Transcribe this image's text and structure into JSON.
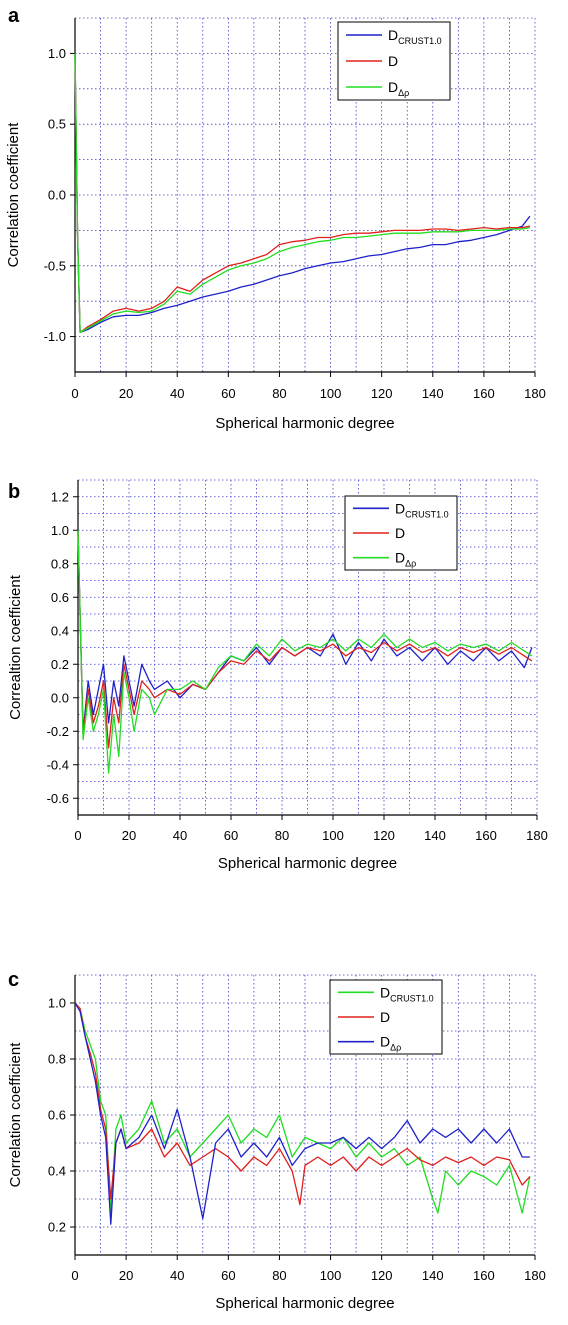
{
  "figure": {
    "panels": [
      "a",
      "b",
      "c"
    ]
  },
  "chart_data": [
    {
      "panel": "a",
      "type": "line",
      "title": "",
      "xlabel": "Spherical harmonic degree",
      "ylabel": "Correlation coefficient",
      "xlim": [
        0,
        180
      ],
      "ylim": [
        -1.25,
        1.25
      ],
      "xticks": [
        0,
        20,
        40,
        60,
        80,
        100,
        120,
        140,
        160,
        180
      ],
      "yticks": [
        -1.0,
        -0.5,
        0.0,
        0.5,
        1.0
      ],
      "ytick_labels": [
        "-1.0",
        "-0.5",
        "0.0",
        "0.5",
        "1.0"
      ],
      "grid": true,
      "legend_position": "top-right",
      "legend": [
        {
          "main": "D",
          "sub": "CRUST1.0",
          "color": "#1f22c9"
        },
        {
          "main": "D",
          "sub": "",
          "color": "#e0201c"
        },
        {
          "main": "D",
          "sub": "Δρ",
          "color": "#22dd22"
        }
      ],
      "series": [
        {
          "name": "D CRUST1.0",
          "color": "#1f22c9",
          "x": [
            0,
            1,
            2,
            5,
            10,
            15,
            20,
            25,
            30,
            35,
            40,
            45,
            50,
            55,
            60,
            65,
            70,
            75,
            80,
            85,
            90,
            95,
            100,
            105,
            110,
            115,
            120,
            125,
            130,
            135,
            140,
            145,
            150,
            155,
            160,
            165,
            170,
            175,
            178
          ],
          "y": [
            1.0,
            -0.3,
            -0.97,
            -0.95,
            -0.9,
            -0.86,
            -0.85,
            -0.85,
            -0.83,
            -0.8,
            -0.78,
            -0.75,
            -0.72,
            -0.7,
            -0.68,
            -0.65,
            -0.63,
            -0.6,
            -0.57,
            -0.55,
            -0.52,
            -0.5,
            -0.48,
            -0.47,
            -0.45,
            -0.43,
            -0.42,
            -0.4,
            -0.38,
            -0.37,
            -0.35,
            -0.35,
            -0.33,
            -0.32,
            -0.3,
            -0.28,
            -0.25,
            -0.22,
            -0.15
          ]
        },
        {
          "name": "D",
          "color": "#e0201c",
          "x": [
            0,
            1,
            2,
            5,
            10,
            15,
            20,
            25,
            30,
            35,
            40,
            45,
            50,
            55,
            60,
            65,
            70,
            75,
            80,
            85,
            90,
            95,
            100,
            105,
            110,
            115,
            120,
            125,
            130,
            135,
            140,
            145,
            150,
            155,
            160,
            165,
            170,
            175,
            178
          ],
          "y": [
            1.0,
            -0.3,
            -0.97,
            -0.93,
            -0.88,
            -0.82,
            -0.8,
            -0.82,
            -0.8,
            -0.75,
            -0.65,
            -0.68,
            -0.6,
            -0.55,
            -0.5,
            -0.48,
            -0.45,
            -0.42,
            -0.35,
            -0.33,
            -0.32,
            -0.3,
            -0.3,
            -0.28,
            -0.27,
            -0.27,
            -0.26,
            -0.25,
            -0.25,
            -0.25,
            -0.24,
            -0.24,
            -0.25,
            -0.24,
            -0.23,
            -0.24,
            -0.23,
            -0.23,
            -0.22
          ]
        },
        {
          "name": "D Δρ",
          "color": "#22dd22",
          "x": [
            0,
            1,
            2,
            5,
            10,
            15,
            20,
            25,
            30,
            35,
            40,
            45,
            50,
            55,
            60,
            65,
            70,
            75,
            80,
            85,
            90,
            95,
            100,
            105,
            110,
            115,
            120,
            125,
            130,
            135,
            140,
            145,
            150,
            155,
            160,
            165,
            170,
            175,
            178
          ],
          "y": [
            1.0,
            -0.3,
            -0.97,
            -0.94,
            -0.89,
            -0.84,
            -0.82,
            -0.83,
            -0.82,
            -0.77,
            -0.68,
            -0.7,
            -0.63,
            -0.58,
            -0.53,
            -0.5,
            -0.48,
            -0.45,
            -0.4,
            -0.37,
            -0.35,
            -0.33,
            -0.32,
            -0.3,
            -0.3,
            -0.29,
            -0.28,
            -0.27,
            -0.27,
            -0.27,
            -0.26,
            -0.26,
            -0.26,
            -0.25,
            -0.25,
            -0.25,
            -0.24,
            -0.24,
            -0.23
          ]
        }
      ]
    },
    {
      "panel": "b",
      "type": "line",
      "title": "",
      "xlabel": "Spherical harmonic degree",
      "ylabel": "Correaltion coefficient",
      "xlim": [
        0,
        180
      ],
      "ylim": [
        -0.7,
        1.3
      ],
      "xticks": [
        0,
        20,
        40,
        60,
        80,
        100,
        120,
        140,
        160,
        180
      ],
      "yticks": [
        -0.6,
        -0.4,
        -0.2,
        0.0,
        0.2,
        0.4,
        0.6,
        0.8,
        1.0,
        1.2
      ],
      "ytick_labels": [
        "-0.6",
        "-0.4",
        "-0.2",
        "0.0",
        "0.2",
        "0.4",
        "0.6",
        "0.8",
        "1.0",
        "1.2"
      ],
      "grid": true,
      "legend_position": "top-right",
      "legend": [
        {
          "main": "D",
          "sub": "CRUST1.0",
          "color": "#1f22c9"
        },
        {
          "main": "D",
          "sub": "",
          "color": "#e0201c"
        },
        {
          "main": "D",
          "sub": "Δρ",
          "color": "#22dd22"
        }
      ],
      "series": [
        {
          "name": "D CRUST1.0",
          "color": "#1f22c9",
          "x": [
            0,
            1,
            2,
            4,
            6,
            8,
            10,
            12,
            14,
            16,
            18,
            20,
            22,
            25,
            28,
            30,
            35,
            40,
            45,
            50,
            55,
            60,
            65,
            70,
            75,
            80,
            85,
            90,
            95,
            100,
            105,
            110,
            115,
            120,
            125,
            130,
            135,
            140,
            145,
            150,
            155,
            160,
            165,
            170,
            175,
            178
          ],
          "y": [
            1.0,
            0.4,
            -0.2,
            0.1,
            -0.1,
            0.05,
            0.2,
            -0.15,
            0.1,
            -0.05,
            0.25,
            0.1,
            -0.05,
            0.2,
            0.1,
            0.05,
            0.1,
            0.0,
            0.08,
            0.05,
            0.15,
            0.25,
            0.22,
            0.3,
            0.2,
            0.3,
            0.25,
            0.3,
            0.25,
            0.38,
            0.2,
            0.33,
            0.22,
            0.35,
            0.25,
            0.3,
            0.22,
            0.3,
            0.2,
            0.28,
            0.22,
            0.3,
            0.22,
            0.28,
            0.18,
            0.3
          ]
        },
        {
          "name": "D",
          "color": "#e0201c",
          "x": [
            0,
            1,
            2,
            4,
            6,
            8,
            10,
            12,
            14,
            16,
            18,
            20,
            22,
            25,
            28,
            30,
            35,
            40,
            45,
            50,
            55,
            60,
            65,
            70,
            75,
            80,
            85,
            90,
            95,
            100,
            105,
            110,
            115,
            120,
            125,
            130,
            135,
            140,
            145,
            150,
            155,
            160,
            165,
            170,
            175,
            178
          ],
          "y": [
            1.0,
            0.4,
            -0.22,
            0.05,
            -0.15,
            -0.05,
            0.1,
            -0.3,
            0.0,
            -0.15,
            0.2,
            0.05,
            -0.1,
            0.1,
            0.05,
            0.0,
            0.05,
            0.02,
            0.08,
            0.05,
            0.15,
            0.22,
            0.2,
            0.28,
            0.22,
            0.3,
            0.25,
            0.3,
            0.28,
            0.32,
            0.25,
            0.3,
            0.27,
            0.33,
            0.28,
            0.32,
            0.27,
            0.3,
            0.25,
            0.3,
            0.27,
            0.3,
            0.26,
            0.3,
            0.25,
            0.22
          ]
        },
        {
          "name": "D Δρ",
          "color": "#22dd22",
          "x": [
            0,
            1,
            2,
            4,
            6,
            8,
            10,
            12,
            14,
            16,
            18,
            20,
            22,
            25,
            28,
            30,
            35,
            40,
            45,
            50,
            55,
            60,
            65,
            70,
            75,
            80,
            85,
            90,
            95,
            100,
            105,
            110,
            115,
            120,
            125,
            130,
            135,
            140,
            145,
            150,
            155,
            160,
            165,
            170,
            175,
            178
          ],
          "y": [
            1.0,
            0.4,
            -0.25,
            0.0,
            -0.2,
            -0.1,
            0.05,
            -0.45,
            -0.1,
            -0.35,
            0.15,
            0.0,
            -0.2,
            0.05,
            0.0,
            -0.1,
            0.05,
            0.05,
            0.1,
            0.05,
            0.18,
            0.25,
            0.22,
            0.32,
            0.25,
            0.35,
            0.28,
            0.32,
            0.3,
            0.35,
            0.28,
            0.35,
            0.3,
            0.38,
            0.3,
            0.35,
            0.3,
            0.33,
            0.28,
            0.32,
            0.3,
            0.32,
            0.28,
            0.33,
            0.28,
            0.25
          ]
        }
      ]
    },
    {
      "panel": "c",
      "type": "line",
      "title": "",
      "xlabel": "Spherical harmonic degree",
      "ylabel": "Correlation coefficient",
      "xlim": [
        0,
        180
      ],
      "ylim": [
        0.1,
        1.1
      ],
      "xticks": [
        0,
        20,
        40,
        60,
        80,
        100,
        120,
        140,
        160,
        180
      ],
      "yticks": [
        0.2,
        0.4,
        0.6,
        0.8,
        1.0
      ],
      "ytick_labels": [
        "0.2",
        "0.4",
        "0.6",
        "0.8",
        "1.0"
      ],
      "grid": true,
      "legend_position": "top-right",
      "legend": [
        {
          "main": "D",
          "sub": "CRUST1.0",
          "color": "#22dd22"
        },
        {
          "main": "D",
          "sub": "",
          "color": "#e0201c"
        },
        {
          "main": "D",
          "sub": "Δρ",
          "color": "#1f22c9"
        }
      ],
      "series": [
        {
          "name": "D CRUST1.0",
          "color": "#22dd22",
          "x": [
            0,
            2,
            4,
            6,
            8,
            10,
            12,
            14,
            16,
            18,
            20,
            25,
            30,
            35,
            40,
            45,
            50,
            55,
            60,
            65,
            70,
            75,
            80,
            85,
            90,
            95,
            100,
            105,
            110,
            115,
            120,
            125,
            130,
            135,
            140,
            142,
            145,
            150,
            155,
            160,
            165,
            170,
            175,
            178
          ],
          "y": [
            1.0,
            0.98,
            0.9,
            0.85,
            0.8,
            0.65,
            0.6,
            0.25,
            0.55,
            0.6,
            0.5,
            0.55,
            0.65,
            0.5,
            0.55,
            0.45,
            0.5,
            0.55,
            0.6,
            0.5,
            0.55,
            0.52,
            0.6,
            0.45,
            0.52,
            0.5,
            0.48,
            0.52,
            0.45,
            0.5,
            0.45,
            0.48,
            0.42,
            0.45,
            0.3,
            0.25,
            0.4,
            0.35,
            0.4,
            0.38,
            0.35,
            0.42,
            0.25,
            0.38
          ]
        },
        {
          "name": "D",
          "color": "#e0201c",
          "x": [
            0,
            2,
            4,
            6,
            8,
            10,
            12,
            14,
            16,
            18,
            20,
            25,
            30,
            35,
            40,
            45,
            50,
            55,
            60,
            65,
            70,
            75,
            80,
            85,
            88,
            90,
            95,
            100,
            105,
            110,
            115,
            120,
            125,
            130,
            135,
            140,
            145,
            150,
            155,
            160,
            165,
            170,
            175,
            178
          ],
          "y": [
            1.0,
            0.98,
            0.88,
            0.82,
            0.75,
            0.62,
            0.55,
            0.3,
            0.5,
            0.55,
            0.48,
            0.5,
            0.55,
            0.45,
            0.5,
            0.42,
            0.45,
            0.48,
            0.45,
            0.4,
            0.45,
            0.42,
            0.48,
            0.4,
            0.28,
            0.42,
            0.45,
            0.42,
            0.45,
            0.4,
            0.45,
            0.42,
            0.45,
            0.48,
            0.44,
            0.42,
            0.45,
            0.43,
            0.45,
            0.42,
            0.45,
            0.44,
            0.35,
            0.38
          ]
        },
        {
          "name": "D Δρ",
          "color": "#1f22c9",
          "x": [
            0,
            2,
            4,
            6,
            8,
            10,
            12,
            14,
            16,
            18,
            20,
            25,
            30,
            35,
            40,
            45,
            50,
            55,
            60,
            65,
            70,
            75,
            80,
            85,
            90,
            95,
            100,
            105,
            110,
            115,
            120,
            125,
            130,
            135,
            140,
            145,
            150,
            155,
            160,
            165,
            170,
            175,
            178
          ],
          "y": [
            1.0,
            0.97,
            0.88,
            0.8,
            0.72,
            0.6,
            0.52,
            0.21,
            0.5,
            0.55,
            0.48,
            0.52,
            0.6,
            0.48,
            0.62,
            0.45,
            0.23,
            0.5,
            0.55,
            0.45,
            0.5,
            0.45,
            0.52,
            0.42,
            0.48,
            0.5,
            0.5,
            0.52,
            0.48,
            0.52,
            0.48,
            0.52,
            0.58,
            0.5,
            0.55,
            0.52,
            0.55,
            0.5,
            0.55,
            0.5,
            0.55,
            0.45,
            0.45
          ]
        }
      ]
    }
  ]
}
